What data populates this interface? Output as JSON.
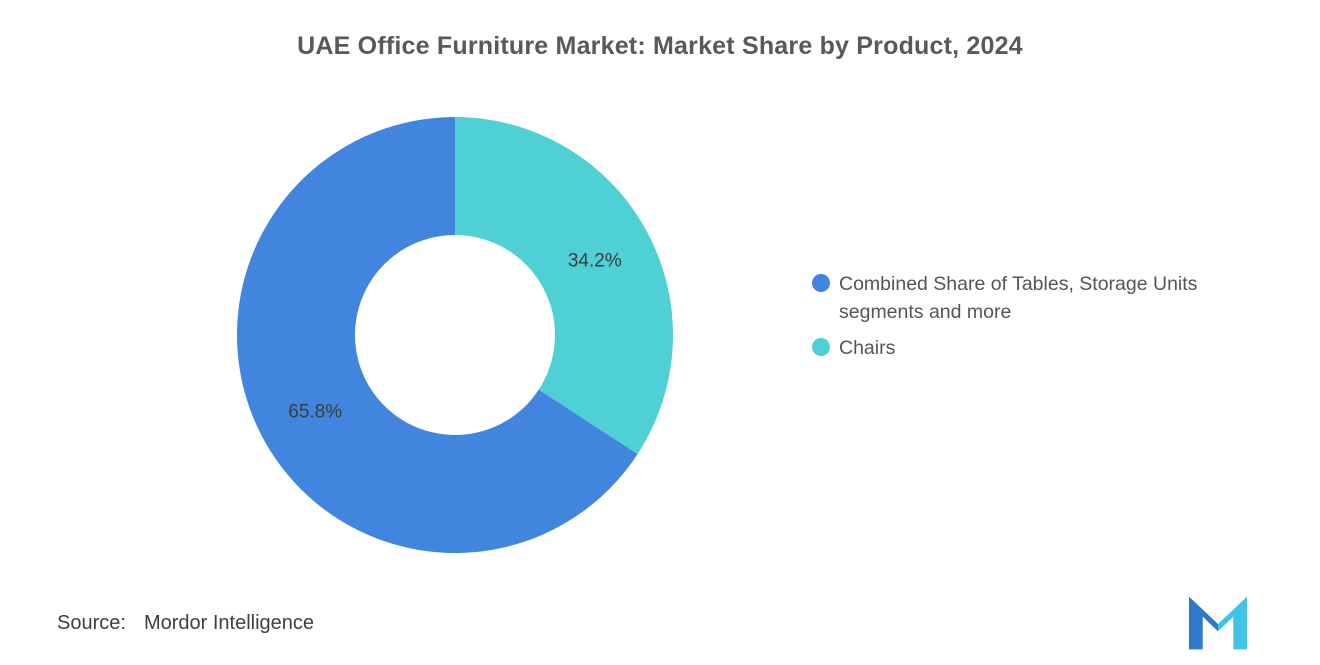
{
  "title": "UAE Office Furniture Market: Market Share by Product, 2024",
  "chart_data": {
    "type": "pie",
    "subtype": "donut",
    "title": "UAE Office Furniture Market: Market Share by Product, 2024",
    "unit": "%",
    "slices": [
      {
        "label": "Combined Share of Tables, Storage Units segments and more",
        "value": 65.8,
        "display": "65.8%",
        "color": "#4285DE"
      },
      {
        "label": "Chairs",
        "value": 34.2,
        "display": "34.2%",
        "color": "#4ED0D5"
      }
    ],
    "draw_order": [
      1,
      0
    ],
    "start_angle_deg": 0,
    "direction": "clockwise",
    "inner_radius_ratio": 0.46,
    "legend_position": "right",
    "data_label_color": "#3c3c3c",
    "background": "#ffffff"
  },
  "source": {
    "label": "Source:",
    "value": "Mordor Intelligence"
  },
  "logo": {
    "icon": "mordor-intelligence-logo"
  }
}
